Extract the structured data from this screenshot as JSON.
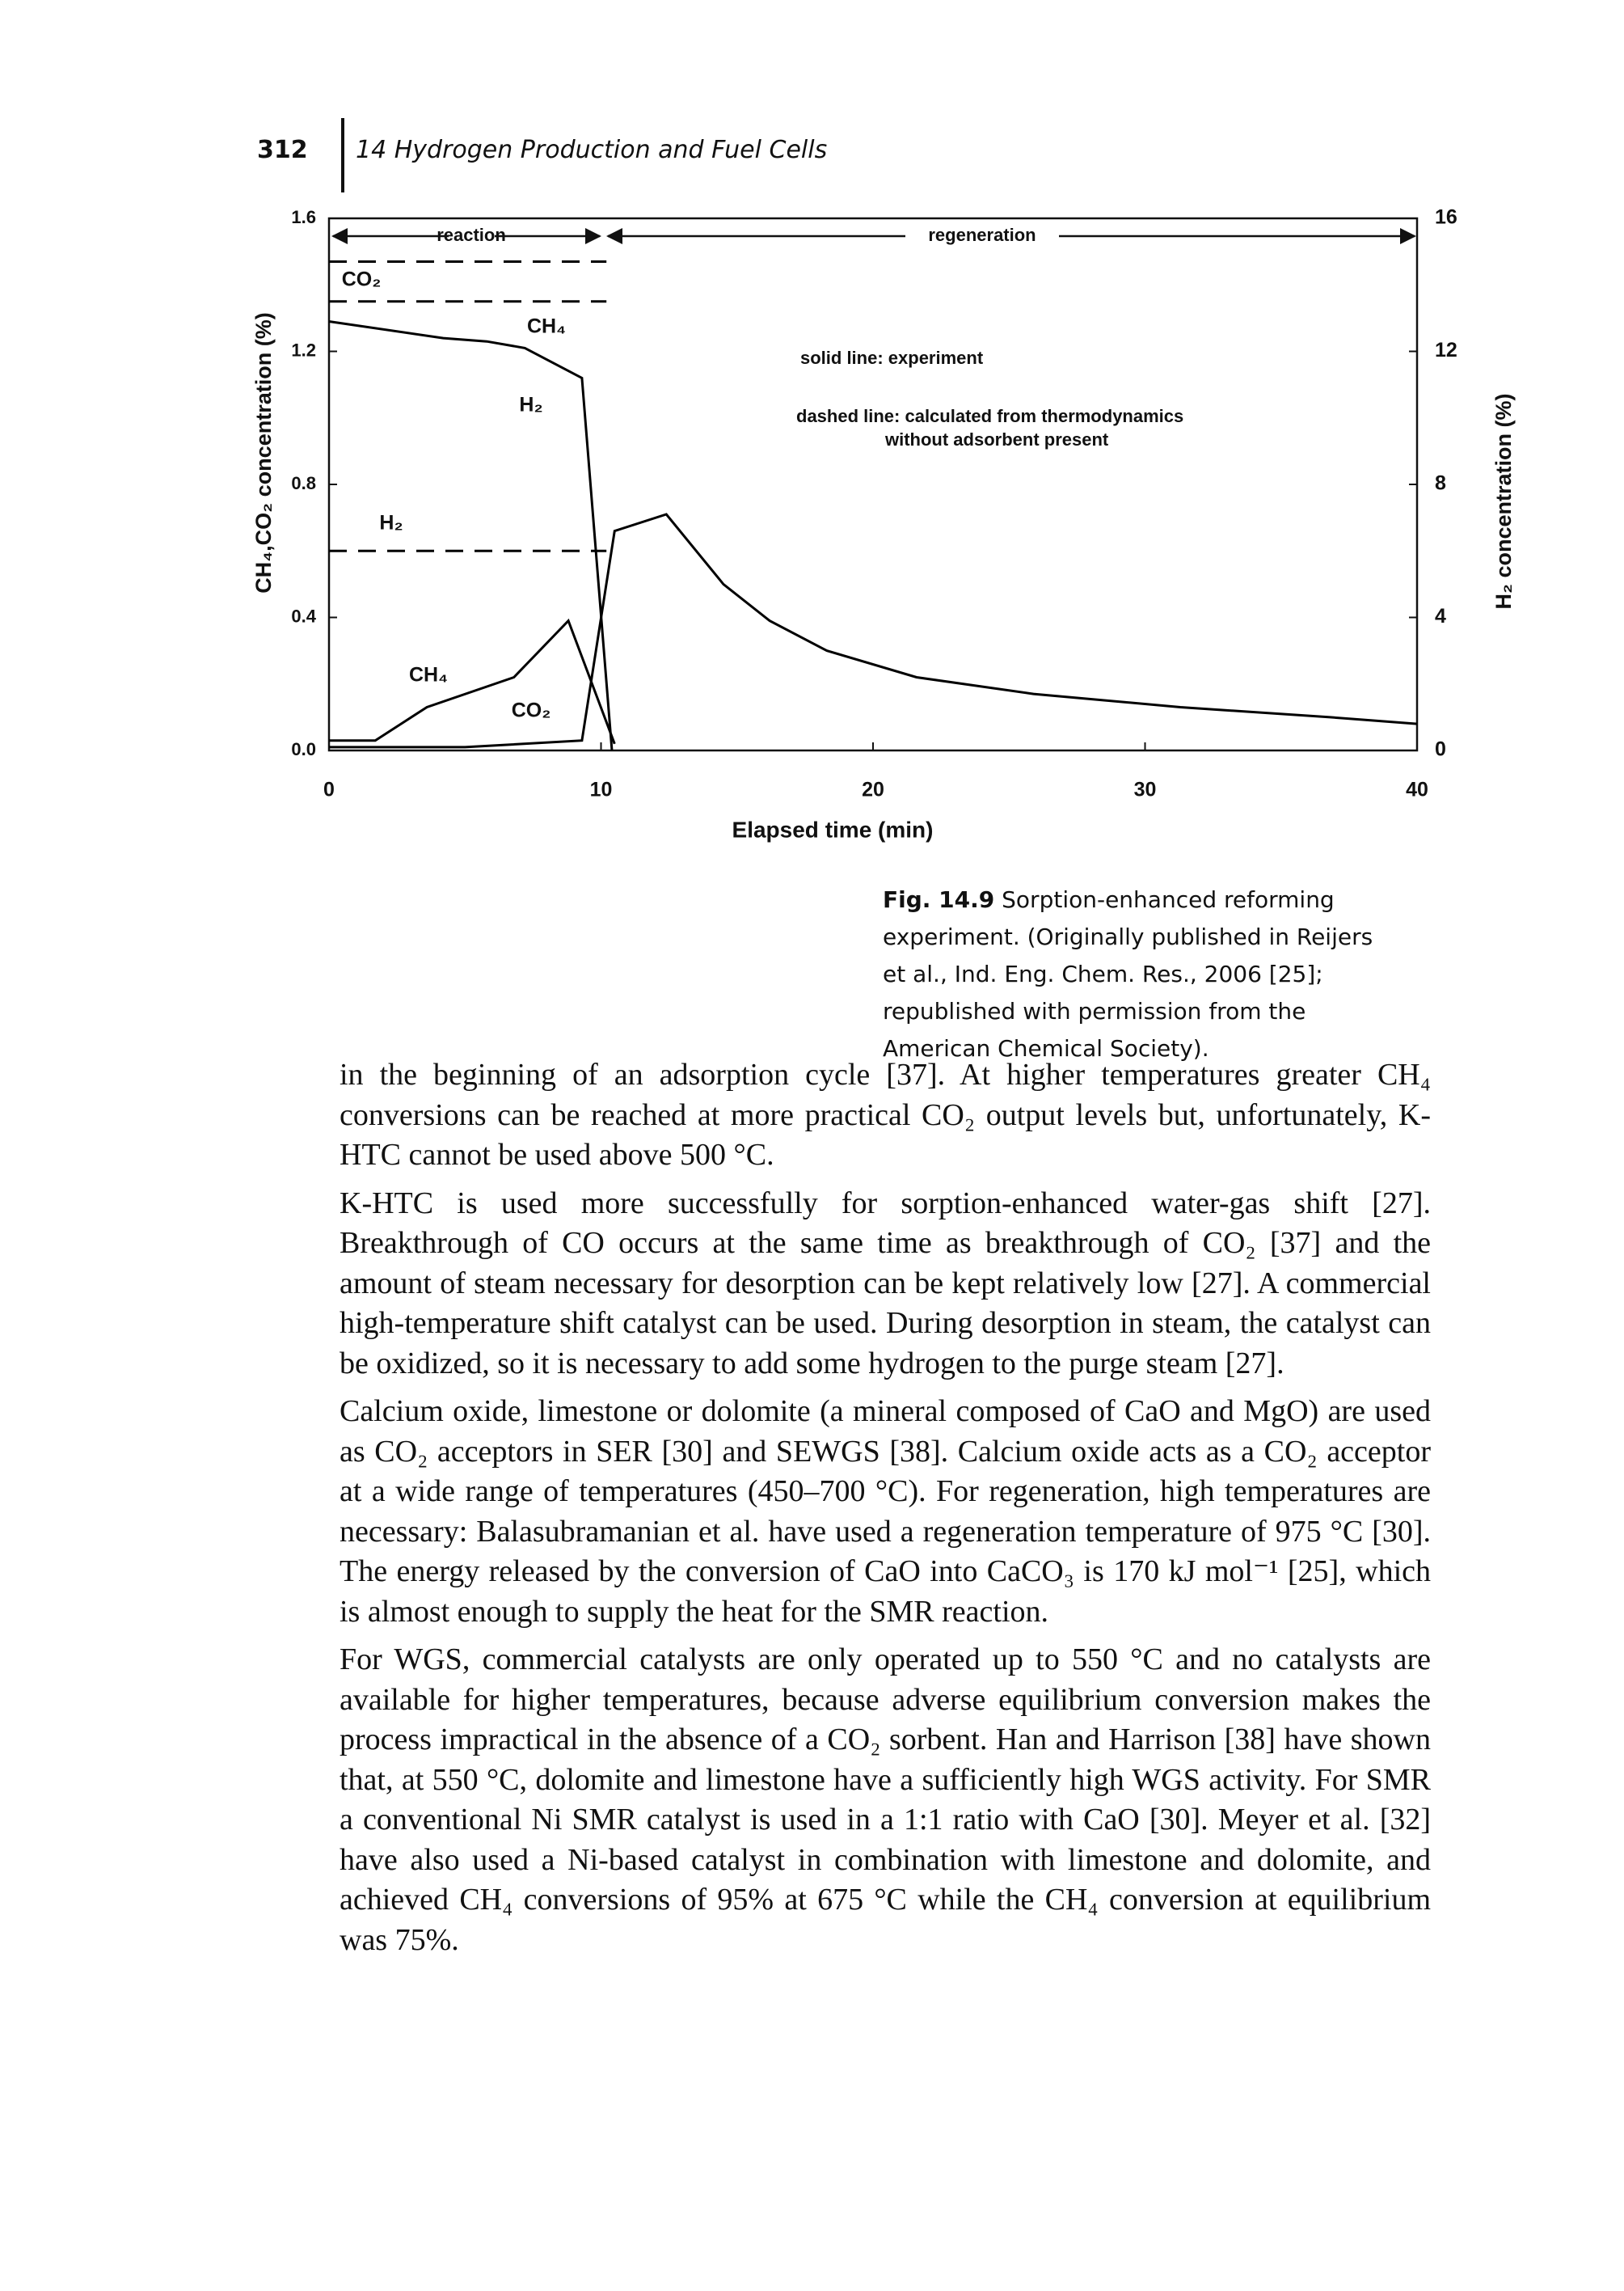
{
  "header": {
    "page_number": "312",
    "running_title": "14 Hydrogen Production and Fuel Cells"
  },
  "chart_data": {
    "type": "line",
    "x_label": "Elapsed time (min)",
    "y_label": "CH₄,CO₂ concentration (%)",
    "y2_label": "H₂ concentration (%)",
    "xlim": [
      0,
      40
    ],
    "xticks": [
      0,
      10,
      20,
      30,
      40
    ],
    "ylim": [
      0,
      1.6
    ],
    "yticks": [
      {
        "value": 0,
        "label": "0.0"
      },
      0.4,
      0.8,
      1.2,
      1.6
    ],
    "y2lim": [
      0,
      16
    ],
    "y2ticks": [
      0,
      4,
      8,
      12,
      16
    ],
    "annotations": [
      "reaction",
      "regeneration",
      "solid line: experiment",
      "dashed line: calculated from thermodynamics",
      "without adsorbent present"
    ],
    "series": [
      {
        "name": "H₂",
        "axis": "y2",
        "style": "solid",
        "color": "#000000",
        "x": [
          0,
          4.2,
          5.8,
          7.2,
          9.3,
          10.4
        ],
        "values": [
          12.9,
          12.4,
          12.3,
          12.1,
          11.2,
          0
        ]
      },
      {
        "name": "CO₂",
        "style": "solid",
        "color": "#000000",
        "x": [
          0,
          5,
          9.3,
          10.5,
          12.4,
          14.5,
          16.2,
          18.3,
          21.6,
          25.9,
          31.3,
          36.8,
          40
        ],
        "values": [
          0.01,
          0.01,
          0.03,
          0.66,
          0.71,
          0.5,
          0.39,
          0.3,
          0.22,
          0.17,
          0.13,
          0.1,
          0.08
        ]
      },
      {
        "name": "CH₄",
        "style": "solid",
        "color": "#000000",
        "x": [
          0,
          1.7,
          3.6,
          6.8,
          8.8,
          10.5
        ],
        "values": [
          0.03,
          0.03,
          0.13,
          0.22,
          0.39,
          0.02
        ]
      },
      {
        "name": "CO₂",
        "style": "dashed",
        "color": "#000000",
        "x": [
          0,
          10.2
        ],
        "values": [
          1.47,
          1.47
        ]
      },
      {
        "name": "CH₄",
        "style": "dashed",
        "color": "#000000",
        "x": [
          0,
          10.2
        ],
        "values": [
          1.35,
          1.35
        ]
      },
      {
        "name": "H₂",
        "axis": "y2",
        "style": "dashed",
        "color": "#000000",
        "x": [
          0,
          10.2
        ],
        "values": [
          6,
          6
        ]
      }
    ]
  },
  "caption": {
    "label": "Fig. 14.9",
    "text": "Sorption-enhanced reforming experiment. (Originally published in Reijers et al., Ind. Eng. Chem. Res., 2006 [25]; republished with permission from the American Chemical Society)."
  },
  "paragraphs": [
    "in the beginning of an adsorption cycle [37]. At higher temperatures greater CH₄ conversions can be reached at more practical CO₂ output levels but, unfortunately, K-HTC cannot be used above 500 °C.",
    "K-HTC is used more successfully for sorption-enhanced water-gas shift [27]. Breakthrough of CO occurs at the same time as breakthrough of CO₂ [37] and the amount of steam necessary for desorption can be kept relatively low [27]. A commercial high-temperature shift catalyst can be used. During desorption in steam, the catalyst can be oxidized, so it is necessary to add some hydrogen to the purge steam [27].",
    "Calcium oxide, limestone or dolomite (a mineral composed of CaO and MgO) are used as CO₂ acceptors in SER [30] and SEWGS [38]. Calcium oxide acts as a CO₂ acceptor at a wide range of temperatures (450–700 °C). For regeneration, high temperatures are necessary: Balasubramanian et al. have used a regeneration temperature of 975 °C [30]. The energy released by the conversion of CaO into CaCO₃ is 170 kJ mol⁻¹ [25], which is almost enough to supply the heat for the SMR reaction.",
    "For WGS, commercial catalysts are only operated up to 550 °C and no catalysts are available for higher temperatures, because adverse equilibrium conversion makes the process impractical in the absence of a CO₂ sorbent. Han and Harrison [38] have shown that, at 550 °C, dolomite and limestone have a sufficiently high WGS activity. For SMR a conventional Ni SMR catalyst is used in a 1:1 ratio with CaO [30]. Meyer et al. [32] have also used a Ni-based catalyst in combination with limestone and dolomite, and achieved CH₄ conversions of 95% at 675 °C while the CH₄ conversion at equilibrium was 75%."
  ]
}
